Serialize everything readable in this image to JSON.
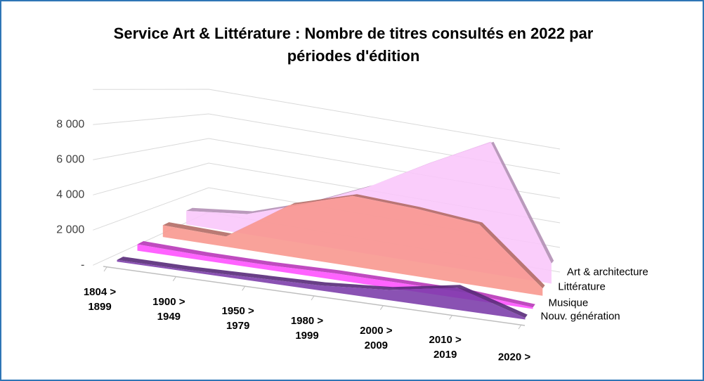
{
  "chart_data": {
    "type": "area3d",
    "title": "Service Art & Littérature : Nombre de titres consultés en 2022 par périodes d'édition",
    "categories": [
      "1804 > 1899",
      "1900 > 1949",
      "1950 > 1979",
      "1980 > 1999",
      "2000 > 2009",
      "2010 > 2019",
      "2020 >"
    ],
    "series": [
      {
        "name": "Art & architecture",
        "color": "#f9c6fb",
        "values": [
          1000,
          1500,
          3000,
          5000,
          7500,
          9800,
          1500
        ]
      },
      {
        "name": "Littérature",
        "color": "#f8958c",
        "values": [
          800,
          700,
          3500,
          4800,
          4600,
          4200,
          500
        ]
      },
      {
        "name": "Musique",
        "color": "#ff4dff",
        "values": [
          400,
          300,
          300,
          400,
          400,
          400,
          100
        ]
      },
      {
        "name": "Nouv. génération",
        "color": "#7a3aa8",
        "values": [
          100,
          100,
          200,
          300,
          600,
          1300,
          100
        ]
      }
    ],
    "ylim": [
      0,
      10000
    ],
    "yticks": [
      {
        "value": 0,
        "label": "-"
      },
      {
        "value": 2000,
        "label": "2 000"
      },
      {
        "value": 4000,
        "label": "4 000"
      },
      {
        "value": 6000,
        "label": "6 000"
      },
      {
        "value": 8000,
        "label": "8 000"
      }
    ],
    "grid": true
  }
}
